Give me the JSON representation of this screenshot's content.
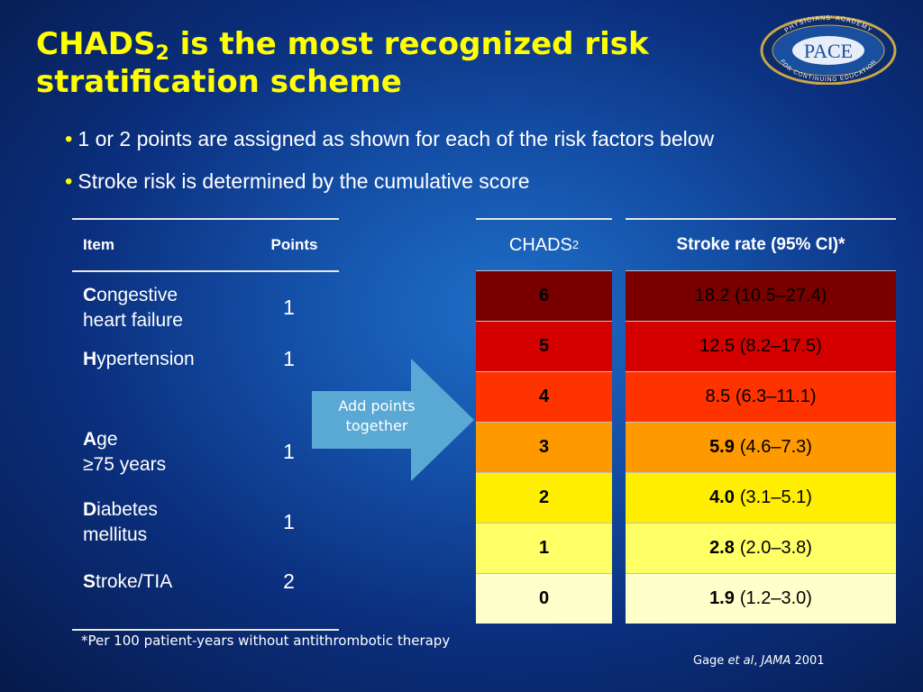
{
  "slide": {
    "title_a": "CHADS",
    "title_sub": "2",
    "title_b": " is the most recognized risk stratification scheme",
    "bullets": [
      "1 or 2 points are assigned as shown for each of the risk factors below",
      "Stroke risk is determined by the cumulative score"
    ]
  },
  "logo": {
    "top_text": "PHYSICIANS' ACADEMY",
    "main": "PACE",
    "bottom_text": "FOR CONTINUING EDUCATION"
  },
  "items_table": {
    "headers": {
      "item": "Item",
      "points": "Points"
    },
    "rows": [
      {
        "cap": "C",
        "rest": "ongestive",
        "line2": "heart failure",
        "points": "1"
      },
      {
        "cap": "H",
        "rest": "ypertension",
        "line2": "",
        "points": "1"
      },
      {
        "cap": "A",
        "rest": "ge",
        "line2": "≥75 years",
        "points": "1"
      },
      {
        "cap": "D",
        "rest": "iabetes",
        "line2": "mellitus",
        "points": "1"
      },
      {
        "cap": "S",
        "rest": "troke/TIA",
        "line2": "",
        "points": "2"
      }
    ]
  },
  "arrow": {
    "label": "Add points together",
    "color": "#5aa8d4"
  },
  "chads_table": {
    "header": "CHADS",
    "header_sub": "2",
    "scores": [
      "6",
      "5",
      "4",
      "3",
      "2",
      "1",
      "0"
    ]
  },
  "rate_table": {
    "header": "Stroke rate (95% CI)*",
    "rows": [
      {
        "rate": "",
        "ci": "18.2 (10.5–27.4)"
      },
      {
        "rate": "",
        "ci": "12.5 (8.2–17.5)"
      },
      {
        "rate": "",
        "ci": "8.5 (6.3–11.1)"
      },
      {
        "rate": "5.9",
        "ci": "(4.6–7.3)"
      },
      {
        "rate": "4.0",
        "ci": "(3.1–5.1)"
      },
      {
        "rate": "2.8",
        "ci": "(2.0–3.8)"
      },
      {
        "rate": "1.9",
        "ci": "(1.2–3.0)"
      }
    ]
  },
  "row_colors": [
    "#7a0000",
    "#d40000",
    "#ff3300",
    "#ff9900",
    "#ffee00",
    "#ffff66",
    "#ffffcc"
  ],
  "footnote": "*Per 100 patient-years without antithrombotic therapy",
  "citation": {
    "author": "Gage ",
    "etal": "et al",
    "sep": ", ",
    "journal": "JAMA",
    "year": " 2001"
  }
}
